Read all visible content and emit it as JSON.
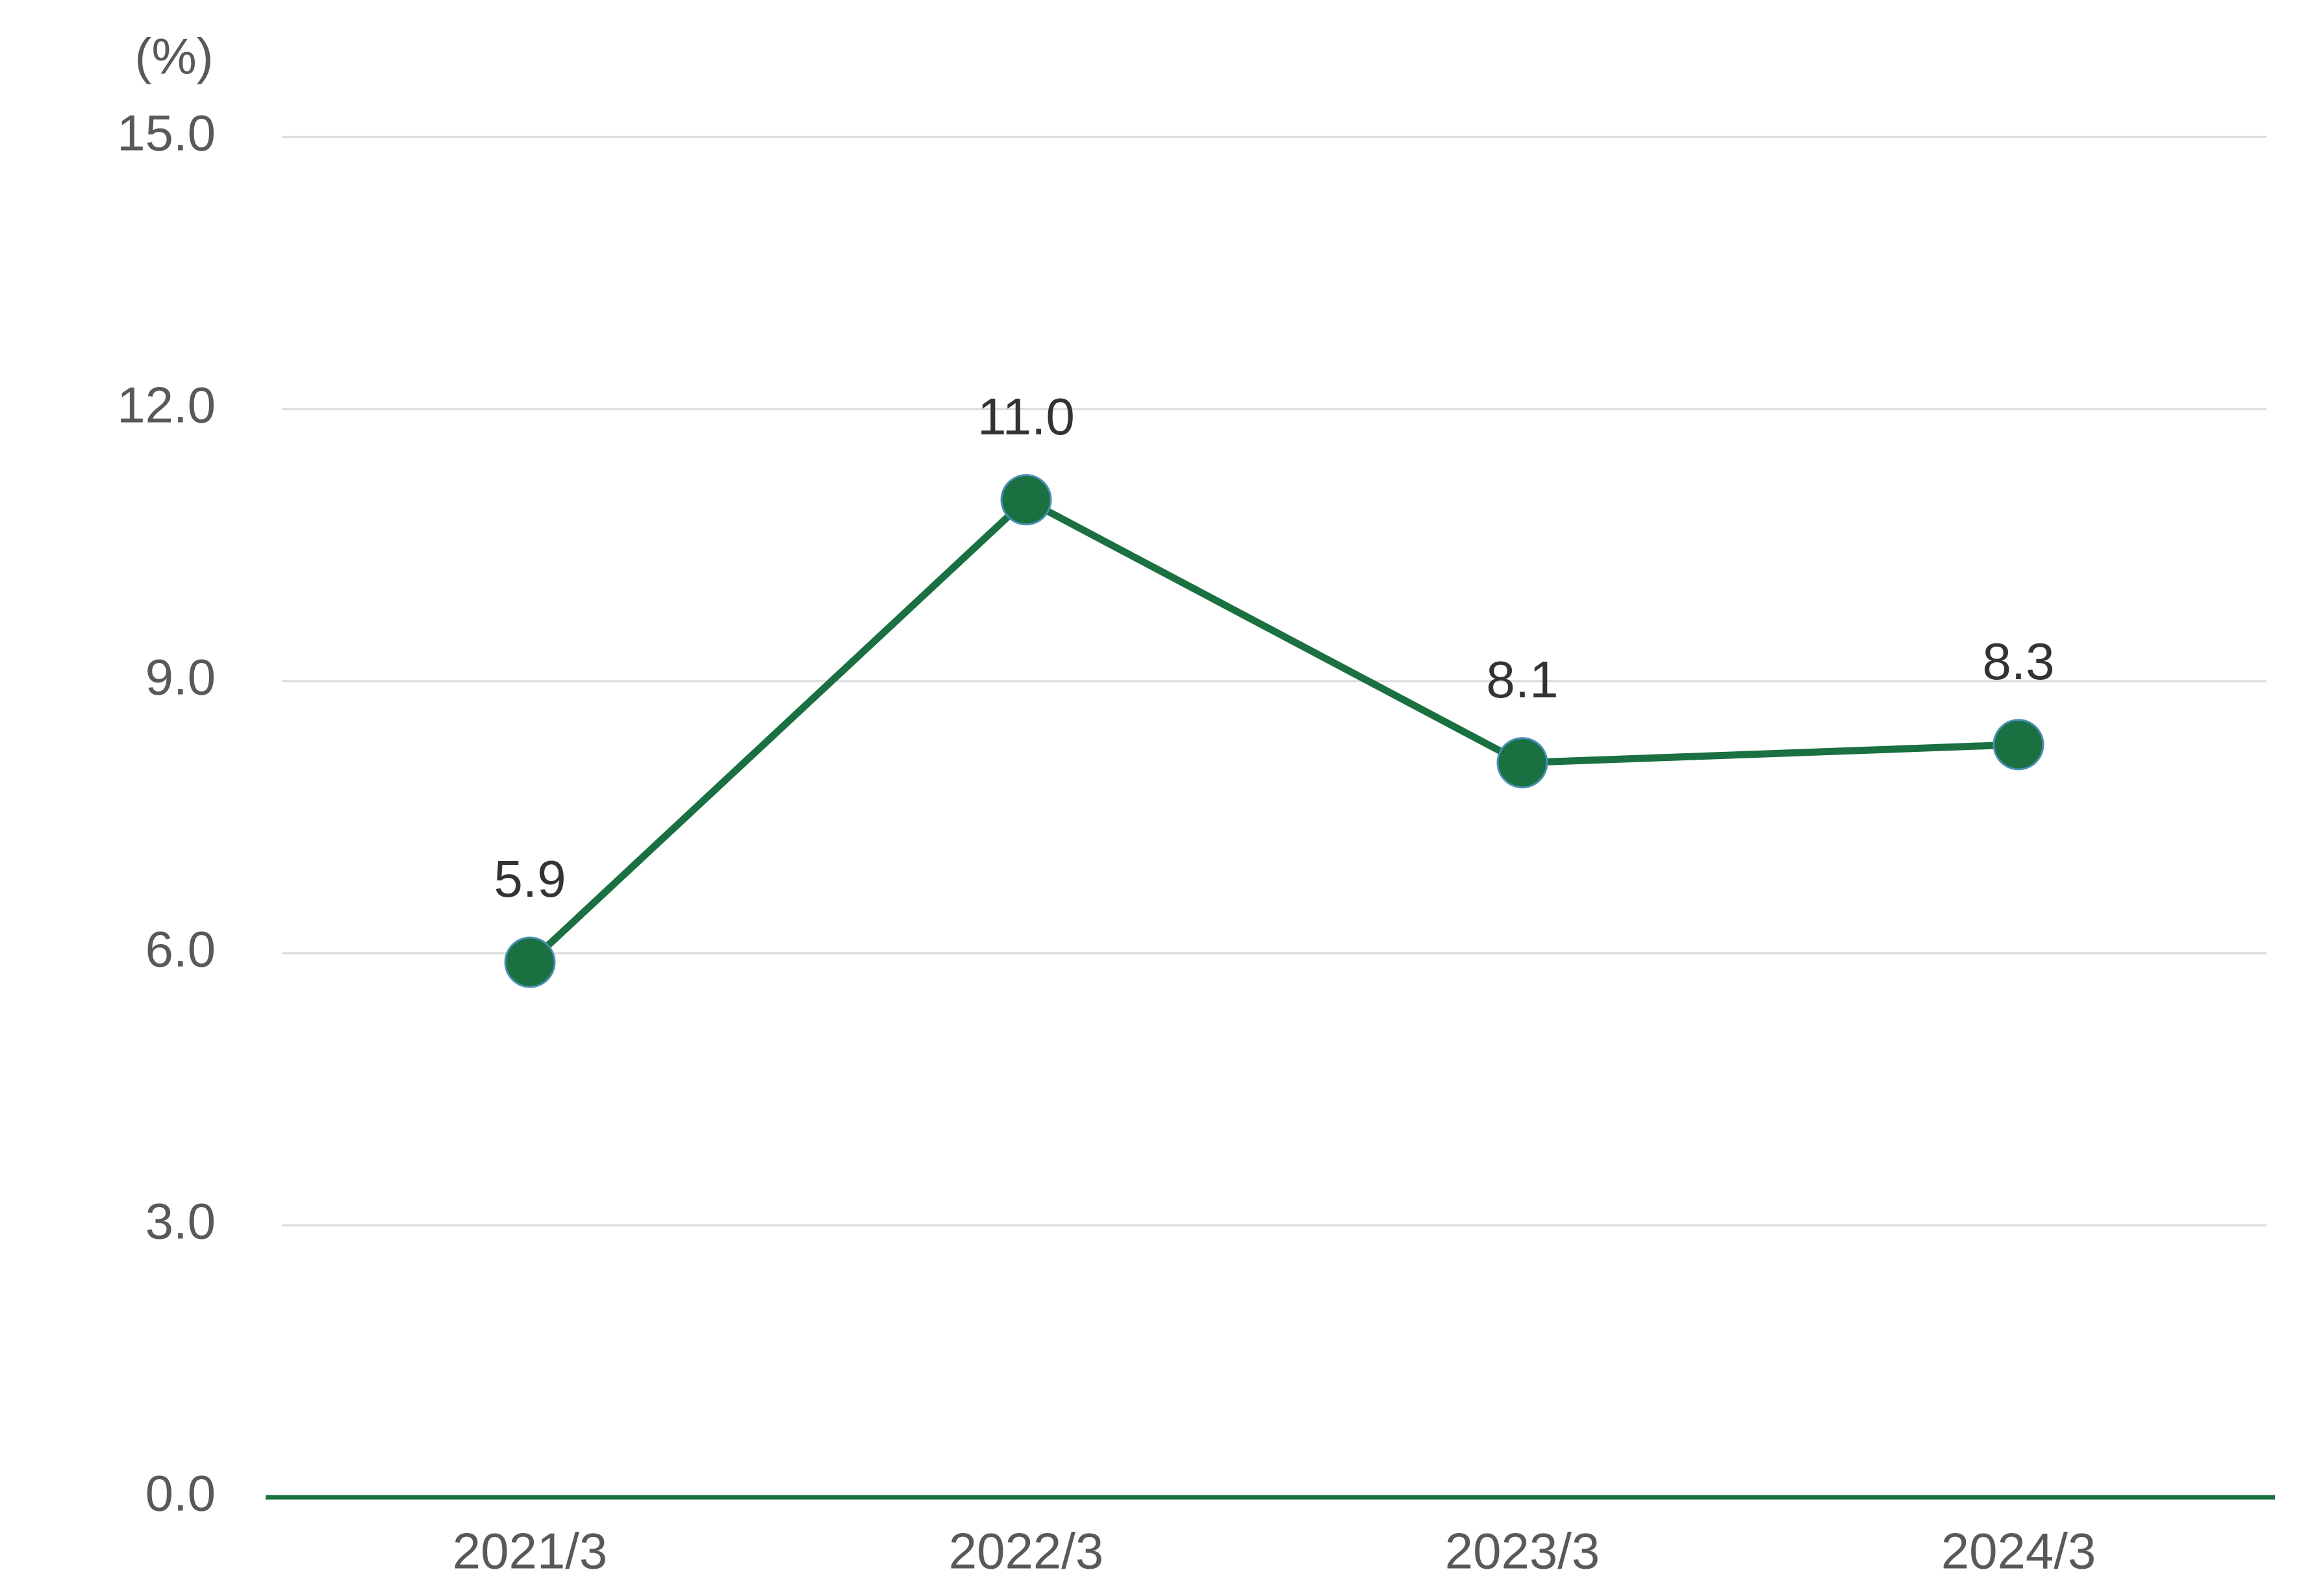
{
  "chart_data": {
    "type": "line",
    "unit_label": "(%)",
    "categories": [
      "2021/3",
      "2022/3",
      "2023/3",
      "2024/3"
    ],
    "series": [
      {
        "color": "#1a7041",
        "values": [
          5.9,
          11.0,
          8.1,
          8.3
        ],
        "value_labels": [
          "5.9",
          "11.0",
          "8.1",
          "8.3"
        ]
      }
    ],
    "ylim": [
      0,
      15
    ],
    "yticks": [
      {
        "value": 0,
        "label": "0.0"
      },
      {
        "value": 3,
        "label": "3.0"
      },
      {
        "value": 6,
        "label": "6.0"
      },
      {
        "value": 9,
        "label": "9.0"
      },
      {
        "value": 12,
        "label": "12.0"
      },
      {
        "value": 15,
        "label": "15.0"
      }
    ],
    "grid": true
  }
}
